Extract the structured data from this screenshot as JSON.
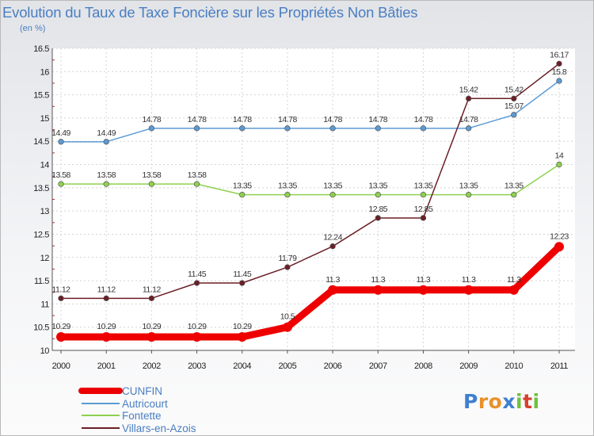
{
  "chart_data": {
    "type": "line",
    "title": "Evolution du Taux de Taxe Foncière sur les Propriétés Non Bâties",
    "ylabel": "(en %)",
    "x": [
      "2000",
      "2001",
      "2002",
      "2003",
      "2004",
      "2005",
      "2006",
      "2007",
      "2008",
      "2009",
      "2010",
      "2011"
    ],
    "yticks": [
      "10",
      "10.5",
      "11",
      "11.5",
      "12",
      "12.5",
      "13",
      "13.5",
      "14",
      "14.5",
      "15",
      "15.5",
      "16",
      "16.5"
    ],
    "ylim": [
      10,
      16.5
    ],
    "grid": true,
    "legend_position": "bottom-left",
    "series": [
      {
        "name": "CUNFIN",
        "color": "#ee0000",
        "values": [
          10.29,
          10.29,
          10.29,
          10.29,
          10.29,
          10.5,
          11.3,
          11.3,
          11.3,
          11.3,
          11.3,
          12.23
        ],
        "labels": [
          "10.29",
          "10.29",
          "10.29",
          "10.29",
          "10.29",
          "10.5",
          "11.3",
          "11.3",
          "11.3",
          "11.3",
          "11.3",
          "12.23"
        ]
      },
      {
        "name": "Autricourt",
        "color": "#5b9bd5",
        "values": [
          14.49,
          14.49,
          14.78,
          14.78,
          14.78,
          14.78,
          14.78,
          14.78,
          14.78,
          14.78,
          15.07,
          15.8
        ],
        "labels": [
          "14.49",
          "14.49",
          "14.78",
          "14.78",
          "14.78",
          "14.78",
          "14.78",
          "14.78",
          "14.78",
          "14.78",
          "15.07",
          "15.8"
        ]
      },
      {
        "name": "Fontette",
        "color": "#8fd14f",
        "values": [
          13.58,
          13.58,
          13.58,
          13.58,
          13.35,
          13.35,
          13.35,
          13.35,
          13.35,
          13.35,
          13.35,
          14
        ],
        "labels": [
          "13.58",
          "13.58",
          "13.58",
          "13.58",
          "13.35",
          "13.35",
          "13.35",
          "13.35",
          "13.35",
          "13.35",
          "13.35",
          "14"
        ]
      },
      {
        "name": "Villars-en-Azois",
        "color": "#6b1f27",
        "values": [
          11.12,
          11.12,
          11.12,
          11.45,
          11.45,
          11.79,
          12.24,
          12.85,
          12.85,
          15.42,
          15.42,
          16.17
        ],
        "labels": [
          "11.12",
          "11.12",
          "11.12",
          "11.45",
          "11.45",
          "11.79",
          "12.24",
          "12.85",
          "12.85",
          "15.42",
          "15.42",
          "16.17"
        ]
      }
    ]
  },
  "logo": {
    "text": [
      "P",
      "r",
      "o",
      "x",
      "i",
      "t",
      "i"
    ],
    "colors": [
      "#3f7fd0",
      "#e8912a",
      "#e8912a",
      "#3f7fd0",
      "#6fc13e",
      "#d8402e",
      "#6fc13e"
    ]
  }
}
